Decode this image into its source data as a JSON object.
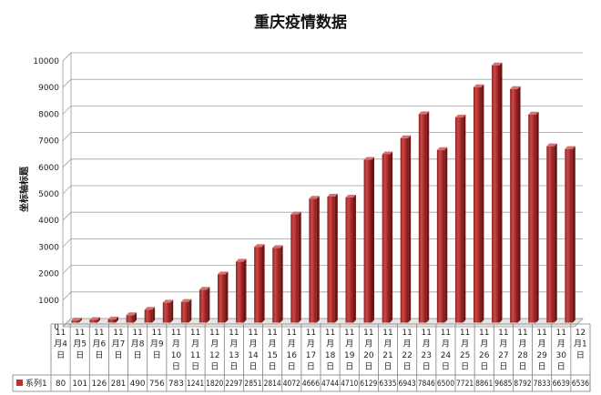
{
  "chart_data": {
    "type": "bar",
    "title": "重庆疫情数据",
    "xlabel": "",
    "ylabel": "坐标轴标题",
    "ylim": [
      0,
      10000
    ],
    "yticks": [
      0,
      1000,
      2000,
      3000,
      4000,
      5000,
      6000,
      7000,
      8000,
      9000,
      10000
    ],
    "grid": true,
    "legend": "bottom-left",
    "categories": [
      "11月4日",
      "11月5日",
      "11月6日",
      "11月7日",
      "11月8日",
      "11月9日",
      "11月10日",
      "11月11日",
      "11月12日",
      "11月13日",
      "11月14日",
      "11月15日",
      "11月16日",
      "11月17日",
      "11月18日",
      "11月19日",
      "11月20日",
      "11月21日",
      "11月22日",
      "11月23日",
      "11月24日",
      "11月25日",
      "11月26日",
      "11月27日",
      "11月28日",
      "11月29日",
      "11月30日",
      "12月1日"
    ],
    "category_lines": [
      [
        "11",
        "月4",
        "日"
      ],
      [
        "11",
        "月5",
        "日"
      ],
      [
        "11",
        "月6",
        "日"
      ],
      [
        "11",
        "月7",
        "日"
      ],
      [
        "11",
        "月8",
        "日"
      ],
      [
        "11",
        "月9",
        "日"
      ],
      [
        "11",
        "月",
        "10",
        "日"
      ],
      [
        "11",
        "月",
        "11",
        "日"
      ],
      [
        "11",
        "月",
        "12",
        "日"
      ],
      [
        "11",
        "月",
        "13",
        "日"
      ],
      [
        "11",
        "月",
        "14",
        "日"
      ],
      [
        "11",
        "月",
        "15",
        "日"
      ],
      [
        "11",
        "月",
        "16",
        "日"
      ],
      [
        "11",
        "月",
        "17",
        "日"
      ],
      [
        "11",
        "月",
        "18",
        "日"
      ],
      [
        "11",
        "月",
        "19",
        "日"
      ],
      [
        "11",
        "月",
        "20",
        "日"
      ],
      [
        "11",
        "月",
        "21",
        "日"
      ],
      [
        "11",
        "月",
        "22",
        "日"
      ],
      [
        "11",
        "月",
        "23",
        "日"
      ],
      [
        "11",
        "月",
        "24",
        "日"
      ],
      [
        "11",
        "月",
        "25",
        "日"
      ],
      [
        "11",
        "月",
        "26",
        "日"
      ],
      [
        "11",
        "月",
        "27",
        "日"
      ],
      [
        "11",
        "月",
        "28",
        "日"
      ],
      [
        "11",
        "月",
        "29",
        "日"
      ],
      [
        "11",
        "月",
        "30",
        "日"
      ],
      [
        "12",
        "月1",
        "日"
      ]
    ],
    "series": [
      {
        "name": "系列1",
        "color": "#b83232",
        "values": [
          80,
          101,
          126,
          281,
          490,
          756,
          783,
          1241,
          1820,
          2297,
          2851,
          2814,
          4072,
          4666,
          4744,
          4710,
          6129,
          6335,
          6943,
          7846,
          6500,
          7721,
          8861,
          9685,
          8792,
          7833,
          6639,
          6536
        ]
      }
    ]
  }
}
